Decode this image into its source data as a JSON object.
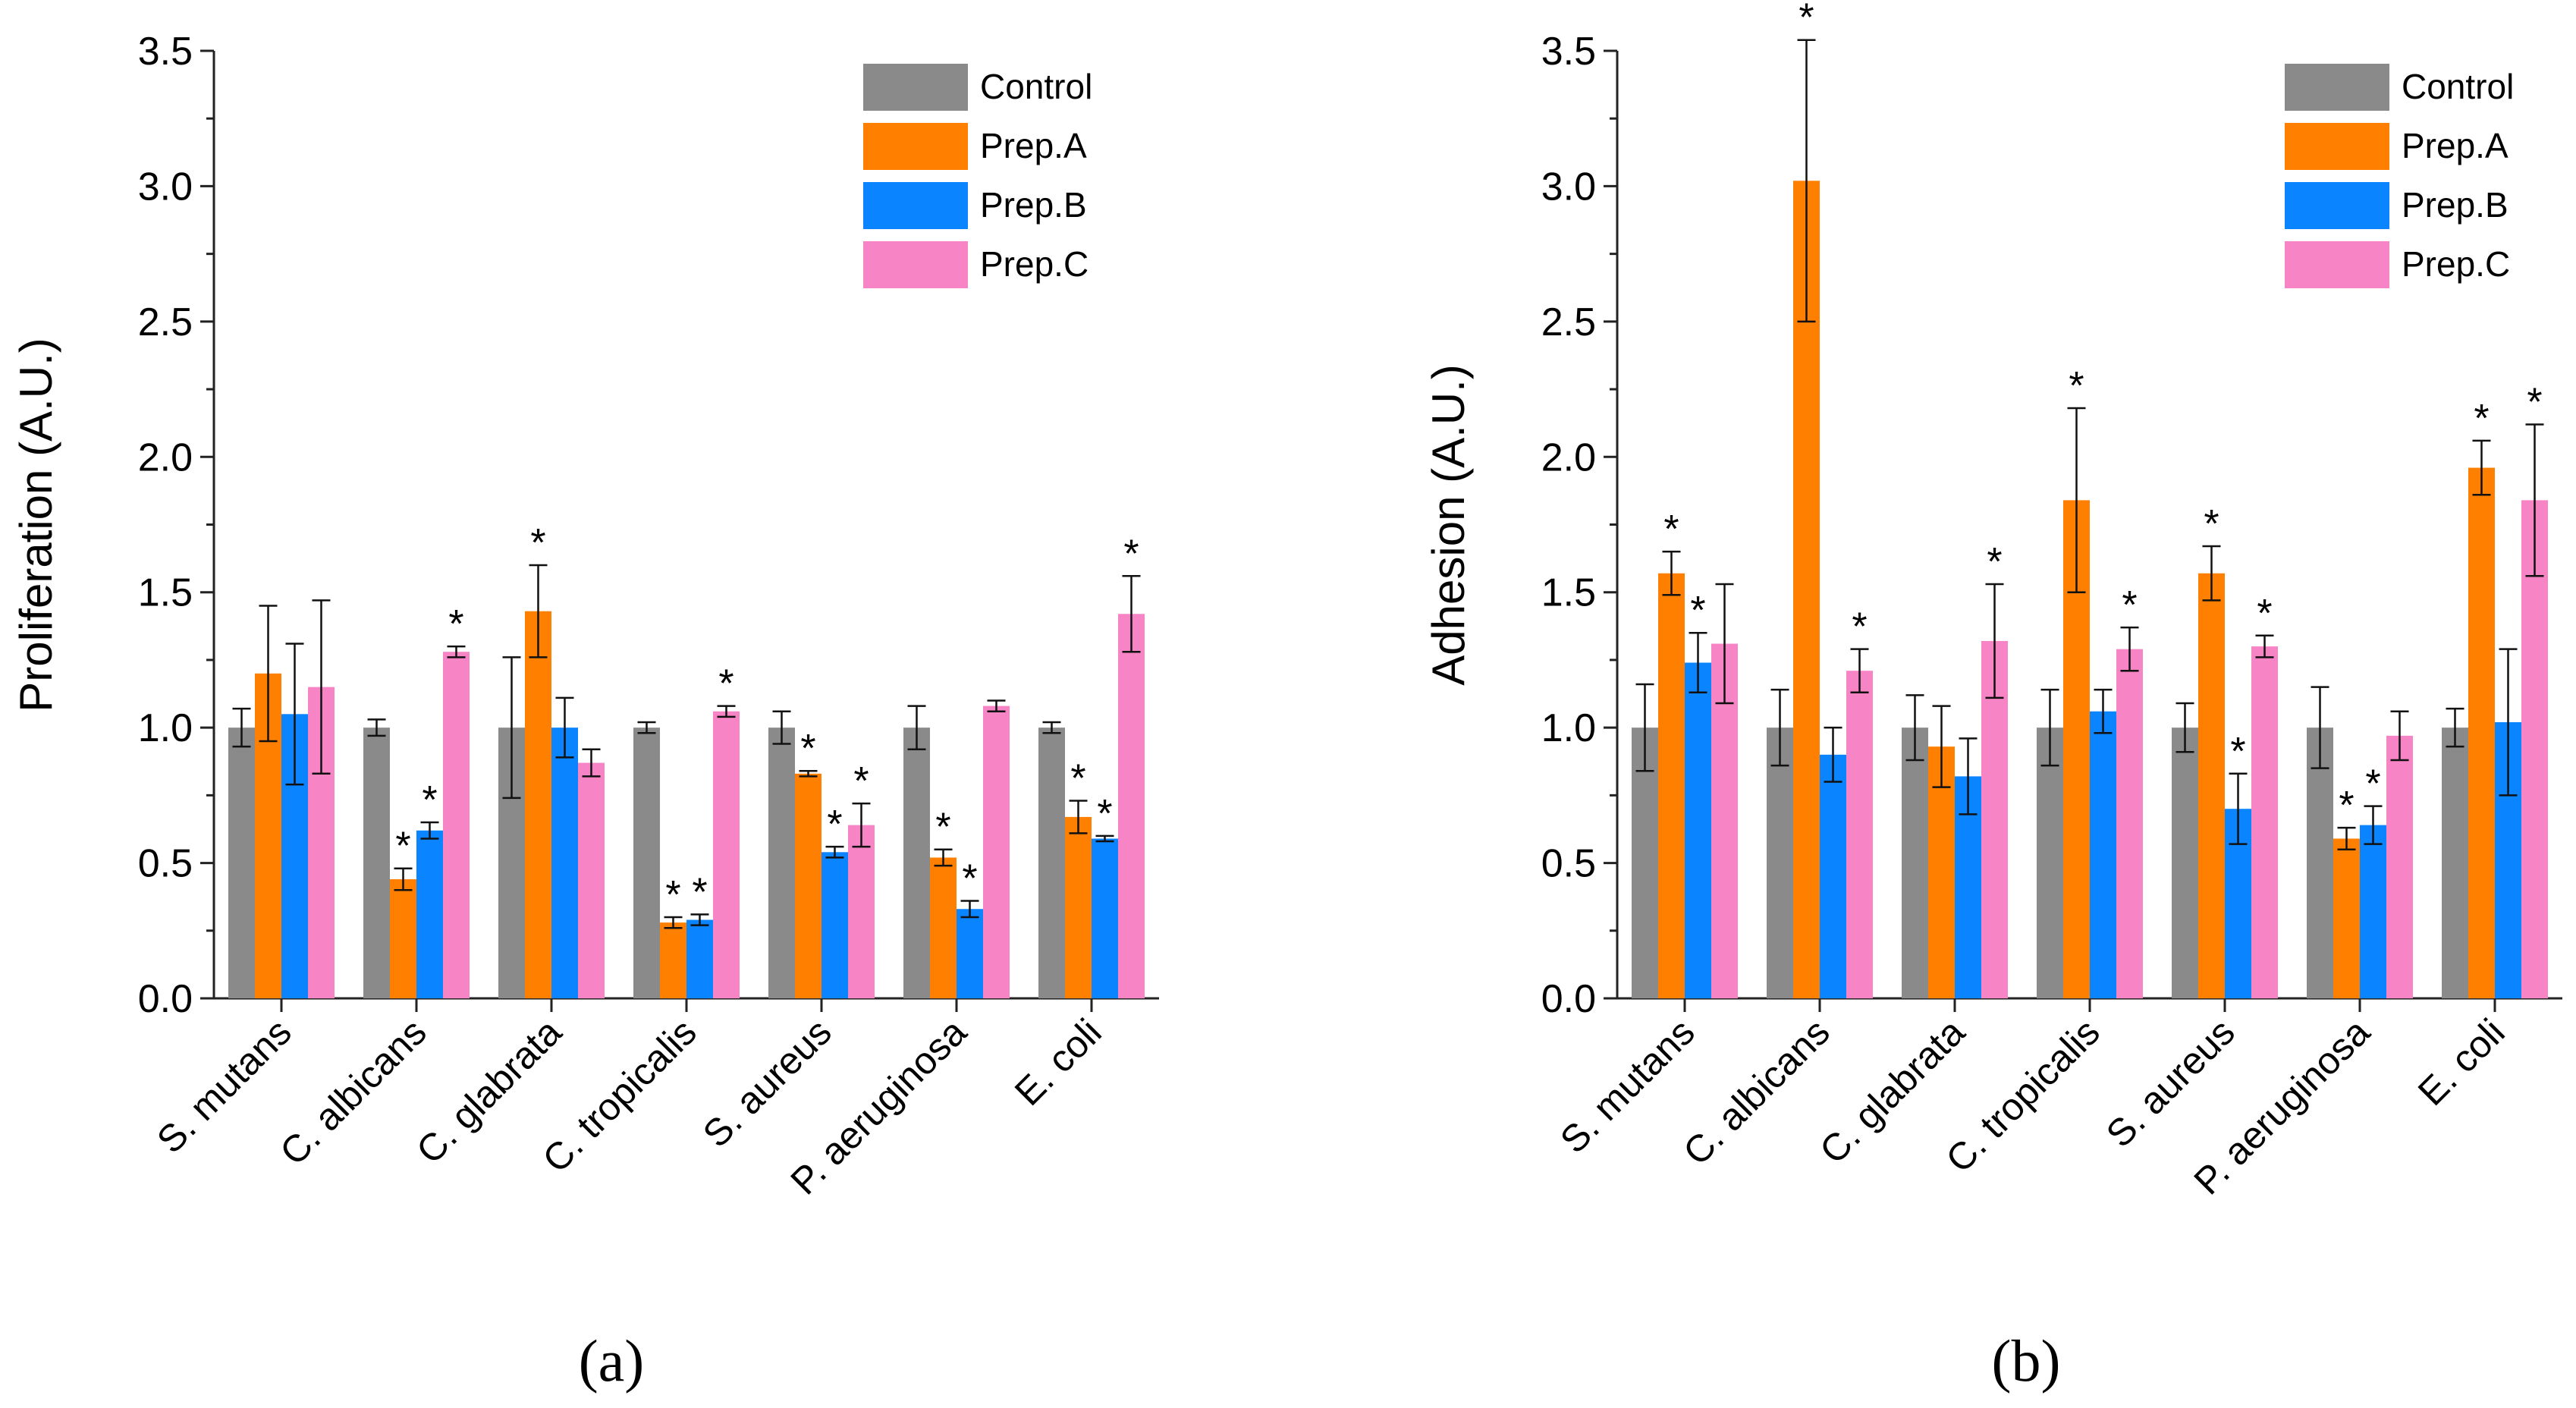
{
  "chart_data": [
    {
      "id": "a",
      "type": "bar",
      "panel_label": "(a)",
      "ylabel": "Proliferation (A.U.)",
      "xlabel": "",
      "ylim": [
        0,
        3.5
      ],
      "yticks": [
        "0.0",
        "0.5",
        "1.0",
        "1.5",
        "2.0",
        "2.5",
        "3.0",
        "3.5"
      ],
      "categories": [
        "S. mutans",
        "C. albicans",
        "C. glabrata",
        "C. tropicalis",
        "S. aureus",
        "P. aeruginosa",
        "E. coli"
      ],
      "legend": {
        "position": "top-right",
        "entries": [
          "Control",
          "Prep.A",
          "Prep.B",
          "Prep.C"
        ]
      },
      "significance_marker": "*",
      "series": [
        {
          "name": "Control",
          "color": "#8a8a8a",
          "values": [
            1.0,
            1.0,
            1.0,
            1.0,
            1.0,
            1.0,
            1.0
          ],
          "errors": [
            0.07,
            0.03,
            0.26,
            0.02,
            0.06,
            0.08,
            0.02
          ],
          "significant": [
            false,
            false,
            false,
            false,
            false,
            false,
            false
          ]
        },
        {
          "name": "Prep.A",
          "color": "#ff8000",
          "values": [
            1.2,
            0.44,
            1.43,
            0.28,
            0.83,
            0.52,
            0.67
          ],
          "errors": [
            0.25,
            0.04,
            0.17,
            0.02,
            0.01,
            0.03,
            0.06
          ],
          "significant": [
            false,
            true,
            true,
            true,
            true,
            true,
            true
          ]
        },
        {
          "name": "Prep.B",
          "color": "#0a84ff",
          "values": [
            1.05,
            0.62,
            1.0,
            0.29,
            0.54,
            0.33,
            0.59
          ],
          "errors": [
            0.26,
            0.03,
            0.11,
            0.02,
            0.02,
            0.03,
            0.01
          ],
          "significant": [
            false,
            true,
            false,
            true,
            true,
            true,
            true
          ]
        },
        {
          "name": "Prep.C",
          "color": "#f784c4",
          "values": [
            1.15,
            1.28,
            0.87,
            1.06,
            0.64,
            1.08,
            1.42
          ],
          "errors": [
            0.32,
            0.02,
            0.05,
            0.02,
            0.08,
            0.02,
            0.14
          ],
          "significant": [
            false,
            true,
            false,
            true,
            true,
            false,
            true
          ]
        }
      ]
    },
    {
      "id": "b",
      "type": "bar",
      "panel_label": "(b)",
      "ylabel": "Adhesion (A.U.)",
      "xlabel": "",
      "ylim": [
        0,
        3.5
      ],
      "yticks": [
        "0.0",
        "0.5",
        "1.0",
        "1.5",
        "2.0",
        "2.5",
        "3.0",
        "3.5"
      ],
      "categories": [
        "S. mutans",
        "C. albicans",
        "C. glabrata",
        "C. tropicalis",
        "S. aureus",
        "P. aeruginosa",
        "E. coli"
      ],
      "legend": {
        "position": "top-right",
        "entries": [
          "Control",
          "Prep.A",
          "Prep.B",
          "Prep.C"
        ]
      },
      "significance_marker": "*",
      "series": [
        {
          "name": "Control",
          "color": "#8a8a8a",
          "values": [
            1.0,
            1.0,
            1.0,
            1.0,
            1.0,
            1.0,
            1.0
          ],
          "errors": [
            0.16,
            0.14,
            0.12,
            0.14,
            0.09,
            0.15,
            0.07
          ],
          "significant": [
            false,
            false,
            false,
            false,
            false,
            false,
            false
          ]
        },
        {
          "name": "Prep.A",
          "color": "#ff8000",
          "values": [
            1.57,
            3.02,
            0.93,
            1.84,
            1.57,
            0.59,
            1.96
          ],
          "errors": [
            0.08,
            0.52,
            0.15,
            0.34,
            0.1,
            0.04,
            0.1
          ],
          "significant": [
            true,
            true,
            false,
            true,
            true,
            true,
            true
          ]
        },
        {
          "name": "Prep.B",
          "color": "#0a84ff",
          "values": [
            1.24,
            0.9,
            0.82,
            1.06,
            0.7,
            0.64,
            1.02
          ],
          "errors": [
            0.11,
            0.1,
            0.14,
            0.08,
            0.13,
            0.07,
            0.27
          ],
          "significant": [
            true,
            false,
            false,
            false,
            true,
            true,
            false
          ]
        },
        {
          "name": "Prep.C",
          "color": "#f784c4",
          "values": [
            1.31,
            1.21,
            1.32,
            1.29,
            1.3,
            0.97,
            1.84
          ],
          "errors": [
            0.22,
            0.08,
            0.21,
            0.08,
            0.04,
            0.09,
            0.28
          ],
          "significant": [
            false,
            true,
            true,
            true,
            true,
            false,
            true
          ]
        }
      ]
    }
  ]
}
